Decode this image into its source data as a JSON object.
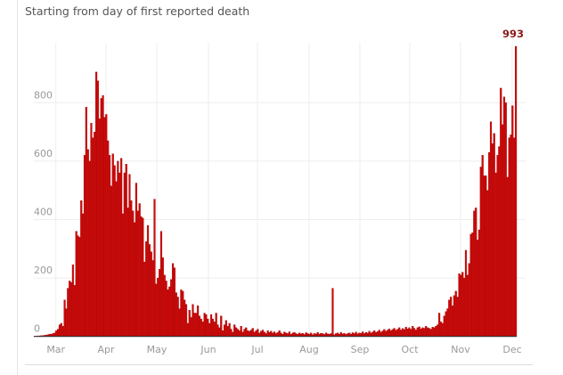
{
  "header": {
    "subtitle": "Starting from day of first reported death"
  },
  "chart_data": {
    "type": "bar",
    "title": "",
    "subtitle": "Starting from day of first reported death",
    "xlabel": "",
    "ylabel": "",
    "ylim": [
      0,
      993
    ],
    "yticks": [
      "0",
      "200",
      "400",
      "600",
      "800"
    ],
    "ytick_values": [
      0,
      200,
      400,
      600,
      800
    ],
    "xticks": [
      "Mar",
      "Apr",
      "May",
      "Jun",
      "Jul",
      "Aug",
      "Sep",
      "Oct",
      "Nov",
      "Dec"
    ],
    "grid": true,
    "bar_color": "#cc0a0a",
    "annotation": {
      "label": "993",
      "color": "#8b1a1a"
    },
    "values": [
      1,
      1,
      2,
      2,
      3,
      3,
      4,
      5,
      6,
      8,
      8,
      10,
      12,
      20,
      25,
      40,
      45,
      35,
      125,
      95,
      165,
      190,
      185,
      245,
      175,
      360,
      345,
      340,
      465,
      420,
      620,
      785,
      640,
      600,
      730,
      680,
      700,
      905,
      875,
      745,
      815,
      825,
      750,
      760,
      670,
      620,
      515,
      625,
      585,
      530,
      600,
      560,
      610,
      420,
      560,
      590,
      440,
      555,
      465,
      430,
      390,
      525,
      430,
      455,
      410,
      405,
      255,
      325,
      380,
      315,
      290,
      260,
      470,
      180,
      200,
      230,
      360,
      270,
      210,
      190,
      160,
      170,
      195,
      250,
      235,
      150,
      135,
      95,
      160,
      155,
      125,
      110,
      45,
      90,
      65,
      110,
      80,
      80,
      105,
      70,
      60,
      50,
      80,
      75,
      60,
      45,
      75,
      60,
      50,
      80,
      40,
      30,
      70,
      20,
      40,
      55,
      35,
      45,
      25,
      15,
      40,
      30,
      25,
      20,
      35,
      15,
      25,
      30,
      20,
      18,
      22,
      28,
      15,
      20,
      25,
      12,
      18,
      22,
      15,
      10,
      20,
      14,
      18,
      12,
      16,
      10,
      14,
      20,
      12,
      8,
      15,
      12,
      10,
      16,
      8,
      12,
      14,
      10,
      8,
      12,
      9,
      11,
      7,
      13,
      10,
      8,
      12,
      6,
      10,
      9,
      14,
      8,
      11,
      10,
      7,
      12,
      9,
      8,
      10,
      165,
      6,
      10,
      12,
      8,
      14,
      9,
      11,
      7,
      10,
      12,
      8,
      13,
      10,
      15,
      9,
      12,
      11,
      16,
      10,
      14,
      12,
      18,
      12,
      15,
      20,
      14,
      17,
      22,
      15,
      19,
      24,
      18,
      22,
      26,
      20,
      24,
      28,
      21,
      25,
      30,
      22,
      27,
      24,
      32,
      26,
      30,
      25,
      35,
      28,
      22,
      30,
      33,
      26,
      30,
      28,
      35,
      30,
      28,
      25,
      32,
      30,
      35,
      40,
      80,
      50,
      45,
      70,
      85,
      95,
      125,
      135,
      105,
      140,
      155,
      135,
      215,
      210,
      220,
      200,
      295,
      210,
      250,
      350,
      355,
      430,
      440,
      330,
      365,
      580,
      620,
      550,
      550,
      500,
      630,
      735,
      660,
      695,
      560,
      620,
      650,
      850,
      725,
      820,
      800,
      545,
      680,
      690,
      790,
      680,
      993
    ]
  }
}
